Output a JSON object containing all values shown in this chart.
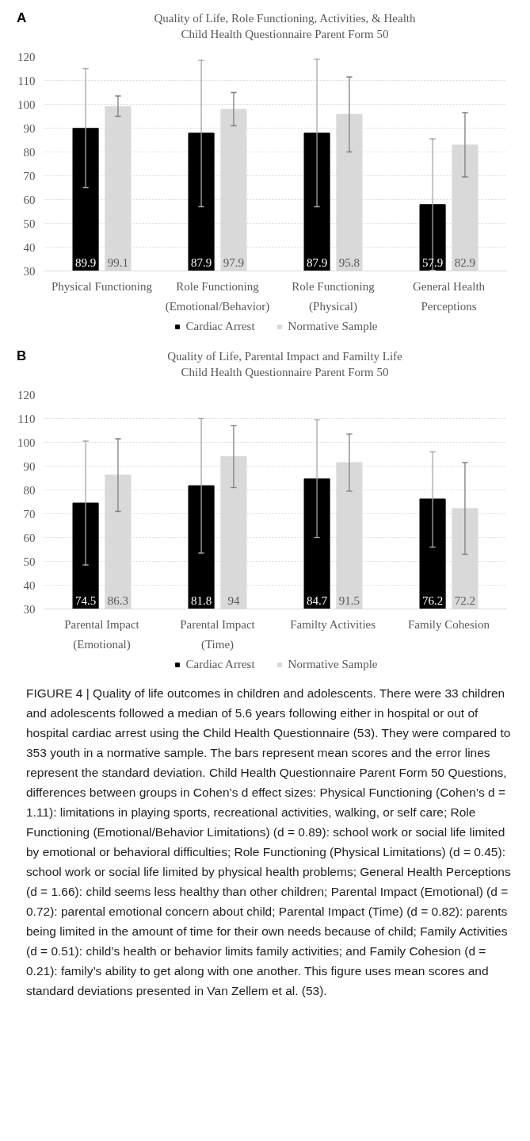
{
  "chart_data": [
    {
      "type": "bar",
      "title": "Quality of Life, Role Functioning, Activities, & Health",
      "subtitle": "Child Health Questionnaire Parent Form 50",
      "annotations": [
        "A"
      ],
      "categories": [
        "Physical Functioning",
        "Role Functioning\n(Emotional/Behavior)",
        "Role Functioning\n(Physical)",
        "General Health\nPerceptions"
      ],
      "series": [
        {
          "name": "Cardiac Arrest",
          "color": "#000000",
          "values": [
            89.9,
            87.9,
            87.9,
            57.9
          ],
          "errors": [
            [
              65,
              115
            ],
            [
              57,
              118.5
            ],
            [
              57,
              119
            ],
            [
              30.3,
              85.5
            ]
          ]
        },
        {
          "name": "Normative Sample",
          "color": "#d9d9d9",
          "values": [
            99.1,
            97.9,
            95.8,
            82.9
          ],
          "errors": [
            [
              95,
              103.5
            ],
            [
              91,
              105
            ],
            [
              80,
              111.5
            ],
            [
              69.5,
              96.5
            ]
          ]
        }
      ],
      "ylim": [
        30,
        120
      ],
      "yticks": [
        30,
        40,
        50,
        60,
        70,
        80,
        90,
        100,
        110,
        120
      ],
      "grid": "y",
      "legend": "bottom",
      "data_labels": true
    },
    {
      "type": "bar",
      "title": "Quality of Life, Parental Impact and Familty Life",
      "subtitle": "Child Health Questionnaire Parent Form 50",
      "annotations": [
        "B",
        "FIGURE 4 | Quality of life outcomes in children and adolescents. There were 33 children and adolescents followed a median of 5.6 years following either in hospital or out of hospital cardiac arrest using the Child Health Questionnaire (53). They were compared to 353 youth in a normative sample. The bars represent mean scores and the error lines represent the standard deviation. Child Health Questionnaire Parent Form 50 Questions, differences between groups in Cohen’s d effect sizes: Physical Functioning (Cohen’s d = 1.11): limitations in playing sports, recreational activities, walking, or self care; Role Functioning (Emotional/Behavior Limitations) (d = 0.89): school work or social life limited by emotional or behavioral difficulties; Role Functioning (Physical Limitations) (d = 0.45): school work or social life limited by physical health problems; General Health Perceptions (d = 1.66): child seems less healthy than other children; Parental Impact (Emotional) (d = 0.72): parental emotional concern about child; Parental Impact (Time) (d = 0.82): parents being limited in the amount of time for their own needs because of child; Family Activities (d = 0.51): child’s health or behavior limits family activities; and Family Cohesion (d = 0.21): family’s ability to get along with one another. This figure uses mean scores and standard deviations presented in Van Zellem et al. (53)."
      ],
      "categories": [
        "Parental Impact\n(Emotional)",
        "Parental Impact\n(Time)",
        "Familty Activities",
        "Family Cohesion"
      ],
      "series": [
        {
          "name": "Cardiac Arrest",
          "color": "#000000",
          "values": [
            74.5,
            81.8,
            84.7,
            76.2
          ],
          "errors": [
            [
              48.5,
              100.5
            ],
            [
              53.5,
              110
            ],
            [
              60,
              109.5
            ],
            [
              56,
              96
            ]
          ]
        },
        {
          "name": "Normative Sample",
          "color": "#d9d9d9",
          "values": [
            86.3,
            94,
            91.5,
            72.2
          ],
          "errors": [
            [
              71,
              101.5
            ],
            [
              81,
              107
            ],
            [
              79.5,
              103.5
            ],
            [
              53,
              91.5
            ]
          ]
        }
      ],
      "ylim": [
        30,
        120
      ],
      "yticks": [
        30,
        40,
        50,
        60,
        70,
        80,
        90,
        100,
        110,
        120
      ],
      "grid": "y",
      "legend": "bottom",
      "data_labels": true
    }
  ]
}
